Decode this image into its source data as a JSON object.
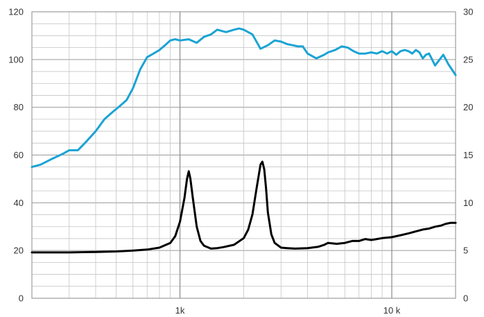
{
  "chart_data": {
    "type": "line",
    "title": "",
    "xlabel": "",
    "ylabel": "",
    "y2label": "",
    "x_scale": "log",
    "xlim": [
      200,
      20000
    ],
    "ylim": [
      0,
      120
    ],
    "y2lim": [
      0,
      30
    ],
    "grid": true,
    "legend": "none",
    "x_tick_labels": [
      {
        "value": 1000,
        "label": "1k"
      },
      {
        "value": 10000,
        "label": "10 k"
      }
    ],
    "y_ticks": [
      0,
      20,
      40,
      60,
      80,
      100,
      120
    ],
    "y2_ticks": [
      0,
      5,
      10,
      15,
      20,
      25,
      30
    ],
    "series": [
      {
        "axis": "left",
        "color": "#1aa3d4",
        "x": [
          200,
          220,
          250,
          280,
          300,
          330,
          360,
          400,
          440,
          480,
          520,
          560,
          600,
          650,
          700,
          750,
          800,
          850,
          900,
          950,
          1000,
          1100,
          1200,
          1300,
          1400,
          1500,
          1650,
          1800,
          1900,
          2000,
          2200,
          2400,
          2600,
          2800,
          3000,
          3200,
          3400,
          3600,
          3800,
          4000,
          4400,
          4800,
          5000,
          5400,
          5800,
          6200,
          6600,
          7000,
          7500,
          8000,
          8500,
          9000,
          9500,
          10000,
          10500,
          11000,
          11500,
          12000,
          12500,
          13000,
          13500,
          14000,
          14500,
          15000,
          15500,
          16000,
          17000,
          17500,
          18000,
          18500,
          19000,
          20000
        ],
        "y": [
          55,
          56,
          58.5,
          60.5,
          62,
          62,
          65.5,
          70,
          75,
          78,
          80.5,
          83,
          88,
          96,
          101,
          102.5,
          104,
          106,
          108,
          108.5,
          108,
          108.5,
          107,
          109.5,
          110.5,
          112.5,
          111.5,
          112.5,
          113,
          112.5,
          110.5,
          104.5,
          106,
          108,
          107.5,
          106.5,
          106,
          105.5,
          105.5,
          102.5,
          100.5,
          102,
          103,
          104,
          105.5,
          105,
          103.5,
          102.5,
          102.5,
          103,
          102.5,
          103.5,
          102.5,
          103.5,
          102,
          103.5,
          104,
          103.5,
          102.5,
          104,
          103,
          100.5,
          102,
          102.5,
          100,
          97.5,
          100.5,
          102,
          100,
          98,
          96.5,
          93.5
        ]
      },
      {
        "axis": "right",
        "color": "#000000",
        "x": [
          200,
          300,
          400,
          500,
          600,
          700,
          800,
          900,
          950,
          1000,
          1050,
          1080,
          1100,
          1120,
          1150,
          1200,
          1250,
          1300,
          1400,
          1500,
          1600,
          1800,
          2000,
          2100,
          2200,
          2300,
          2400,
          2450,
          2500,
          2550,
          2600,
          2700,
          2800,
          3000,
          3200,
          3500,
          4000,
          4500,
          4800,
          5000,
          5500,
          6000,
          6500,
          7000,
          7500,
          8000,
          8500,
          9000,
          10000,
          11000,
          12000,
          13000,
          14000,
          15000,
          16000,
          17000,
          18000,
          19000,
          20000
        ],
        "y": [
          4.8,
          4.8,
          4.85,
          4.9,
          5,
          5.1,
          5.3,
          5.8,
          6.5,
          8,
          10.5,
          12.5,
          13.3,
          12.5,
          10.5,
          7.5,
          6,
          5.5,
          5.2,
          5.25,
          5.35,
          5.6,
          6.3,
          7.2,
          8.8,
          11.5,
          14.0,
          14.3,
          13.5,
          11.5,
          9.0,
          6.7,
          5.8,
          5.3,
          5.25,
          5.2,
          5.25,
          5.4,
          5.6,
          5.8,
          5.7,
          5.8,
          6,
          6,
          6.2,
          6.1,
          6.2,
          6.3,
          6.4,
          6.6,
          6.8,
          7,
          7.2,
          7.3,
          7.5,
          7.6,
          7.8,
          7.9,
          7.9
        ]
      }
    ]
  }
}
